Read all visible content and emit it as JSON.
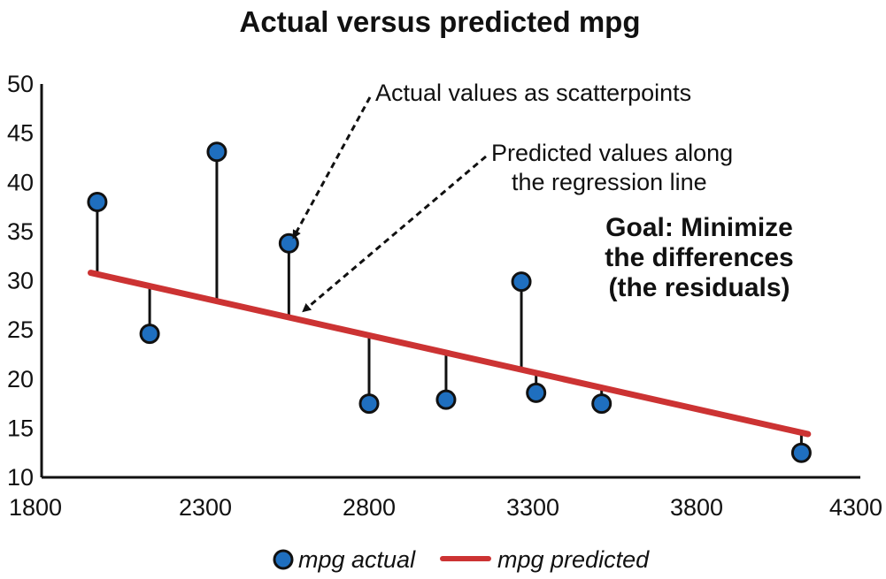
{
  "chart_data": {
    "type": "scatter",
    "title": "Actual versus predicted mpg",
    "xlabel": "",
    "ylabel": "",
    "xlim": [
      1800,
      4300
    ],
    "ylim": [
      10,
      50
    ],
    "x_ticks": [
      1800,
      2300,
      2800,
      3300,
      3800,
      4300
    ],
    "y_ticks": [
      10,
      15,
      20,
      25,
      30,
      35,
      40,
      45,
      50
    ],
    "grid": false,
    "legend_position": "bottom",
    "series": [
      {
        "name": "mpg actual",
        "kind": "scatter",
        "color": "#1f6fbf",
        "points": [
          {
            "x": 1970,
            "y": 38.0
          },
          {
            "x": 2130,
            "y": 24.6
          },
          {
            "x": 2335,
            "y": 43.1
          },
          {
            "x": 2555,
            "y": 33.8
          },
          {
            "x": 2800,
            "y": 17.5
          },
          {
            "x": 3035,
            "y": 17.9
          },
          {
            "x": 3265,
            "y": 29.9
          },
          {
            "x": 3310,
            "y": 18.6
          },
          {
            "x": 3510,
            "y": 17.5
          },
          {
            "x": 4120,
            "y": 12.5
          }
        ]
      },
      {
        "name": "mpg predicted",
        "kind": "line",
        "color": "#cc3333",
        "points": [
          {
            "x": 1950,
            "y": 30.8
          },
          {
            "x": 4140,
            "y": 14.4
          }
        ]
      }
    ],
    "annotations": [
      {
        "text": "Actual values as scatterpoints"
      },
      {
        "text_lines": [
          "Predicted values along",
          "the regression line"
        ]
      },
      {
        "text_lines": [
          "Goal: Minimize",
          "the differences",
          "(the residuals)"
        ]
      }
    ]
  }
}
